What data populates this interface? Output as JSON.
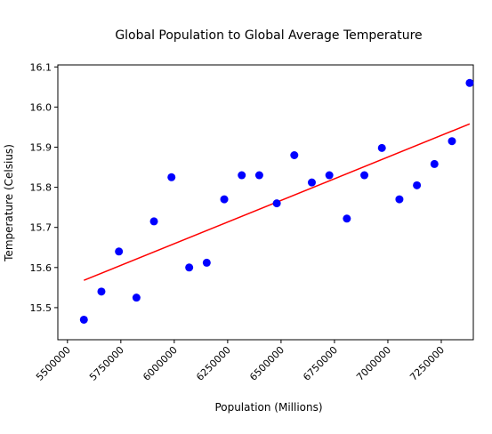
{
  "chart_data": {
    "type": "scatter",
    "title": "Global Population to Global Average Temperature",
    "xlabel": "Population (Millions)",
    "ylabel": "Temperature (Celsius)",
    "xlim": [
      5455000,
      7400000
    ],
    "ylim": [
      15.42,
      16.105
    ],
    "xticks": [
      5500000,
      5750000,
      6000000,
      6250000,
      6500000,
      6750000,
      7000000,
      7250000
    ],
    "yticks": [
      15.5,
      15.6,
      15.7,
      15.8,
      15.9,
      16.0,
      16.1
    ],
    "yticklabels": [
      "15.5",
      "15.6",
      "15.7",
      "15.8",
      "15.9",
      "16.0",
      "16.1"
    ],
    "point_color": "#0000ff",
    "series": [
      {
        "values": [
          [
            5577000,
            15.47
          ],
          [
            5659000,
            15.54
          ],
          [
            5741000,
            15.64
          ],
          [
            5823000,
            15.525
          ],
          [
            5905000,
            15.715
          ],
          [
            5987000,
            15.825
          ],
          [
            6070000,
            15.6
          ],
          [
            6152000,
            15.612
          ],
          [
            6234000,
            15.77
          ],
          [
            6316000,
            15.83
          ],
          [
            6398000,
            15.83
          ],
          [
            6480000,
            15.76
          ],
          [
            6562000,
            15.88
          ],
          [
            6644000,
            15.812
          ],
          [
            6726000,
            15.83
          ],
          [
            6808000,
            15.722
          ],
          [
            6890000,
            15.83
          ],
          [
            6972000,
            15.898
          ],
          [
            7054000,
            15.77
          ],
          [
            7136000,
            15.805
          ],
          [
            7218000,
            15.858
          ],
          [
            7300000,
            15.915
          ],
          [
            7383000,
            16.06
          ]
        ]
      }
    ],
    "trendline": {
      "color": "#ff0000",
      "start": [
        5577000,
        15.568
      ],
      "end": [
        7383000,
        15.958
      ]
    }
  }
}
